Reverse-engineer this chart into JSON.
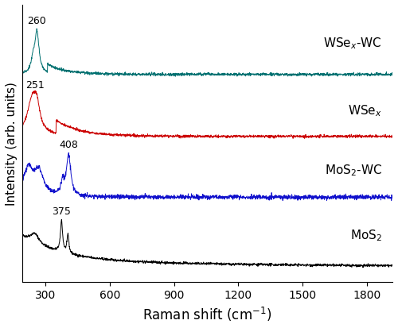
{
  "x_min": 190,
  "x_max": 1920,
  "xlabel": "Raman shift (cm$^{-1}$)",
  "ylabel": "Intensity (arb. units)",
  "xticks": [
    300,
    600,
    900,
    1200,
    1500,
    1800
  ],
  "colors": {
    "MoS2": "#000000",
    "MoS2_WC": "#1010cc",
    "WSex": "#cc0000",
    "WSex_WC": "#007070"
  },
  "labels": {
    "MoS2": "MoS$_2$",
    "MoS2_WC": "MoS$_2$-WC",
    "WSex": "WSe$_x$",
    "WSex_WC": "WSe$_x$-WC"
  },
  "offsets": {
    "MoS2": 0.0,
    "MoS2_WC": 0.28,
    "WSex": 0.54,
    "WSex_WC": 0.8
  },
  "label_y_positions": {
    "MoS2": 0.135,
    "MoS2_WC": 0.41,
    "WSex": 0.66,
    "WSex_WC": 0.94
  },
  "noise_seed": 42,
  "n_points": 1730,
  "scale": 0.2
}
